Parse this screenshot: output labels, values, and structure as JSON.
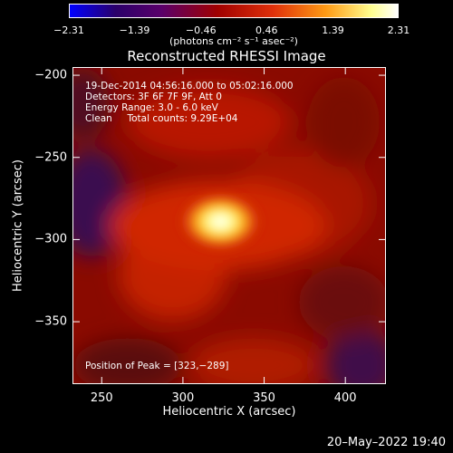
{
  "colorbar": {
    "ticks": [
      "−2.31",
      "−1.39",
      "−0.46",
      "0.46",
      "1.39",
      "2.31"
    ],
    "tick_values": [
      -2.31,
      -1.39,
      -0.46,
      0.46,
      1.39,
      2.31
    ],
    "unit_label": "(photons cm⁻² s⁻¹ asec⁻²)",
    "colors": [
      "#0000ff",
      "#2a006a",
      "#5a006a",
      "#a00000",
      "#e0300a",
      "#ff9a14",
      "#ffff90",
      "#ffffff"
    ]
  },
  "chart_data": {
    "type": "heatmap",
    "title": "Reconstructed RHESSI Image",
    "xlabel": "Heliocentric X (arcsec)",
    "ylabel": "Heliocentric Y (arcsec)",
    "x_ticks": [
      250,
      300,
      350,
      400
    ],
    "y_ticks": [
      -200,
      -250,
      -300,
      -350
    ],
    "y_tick_labels": [
      "−200",
      "−250",
      "−300",
      "−350"
    ],
    "xlim": [
      232,
      425
    ],
    "ylim": [
      -388,
      -195
    ],
    "peak": {
      "x": 323,
      "y": -289
    },
    "annotations": [
      "19-Dec-2014 04:56:16.000 to 05:02:16.000",
      "Detectors: 3F 6F 7F 9F, Att 0",
      "Energy Range: 3.0 - 6.0 keV",
      "Clean     Total counts: 9.29E+04"
    ],
    "peak_label": "Position of Peak = [323,−289]"
  },
  "timestamp": "20–May–2022 19:40"
}
